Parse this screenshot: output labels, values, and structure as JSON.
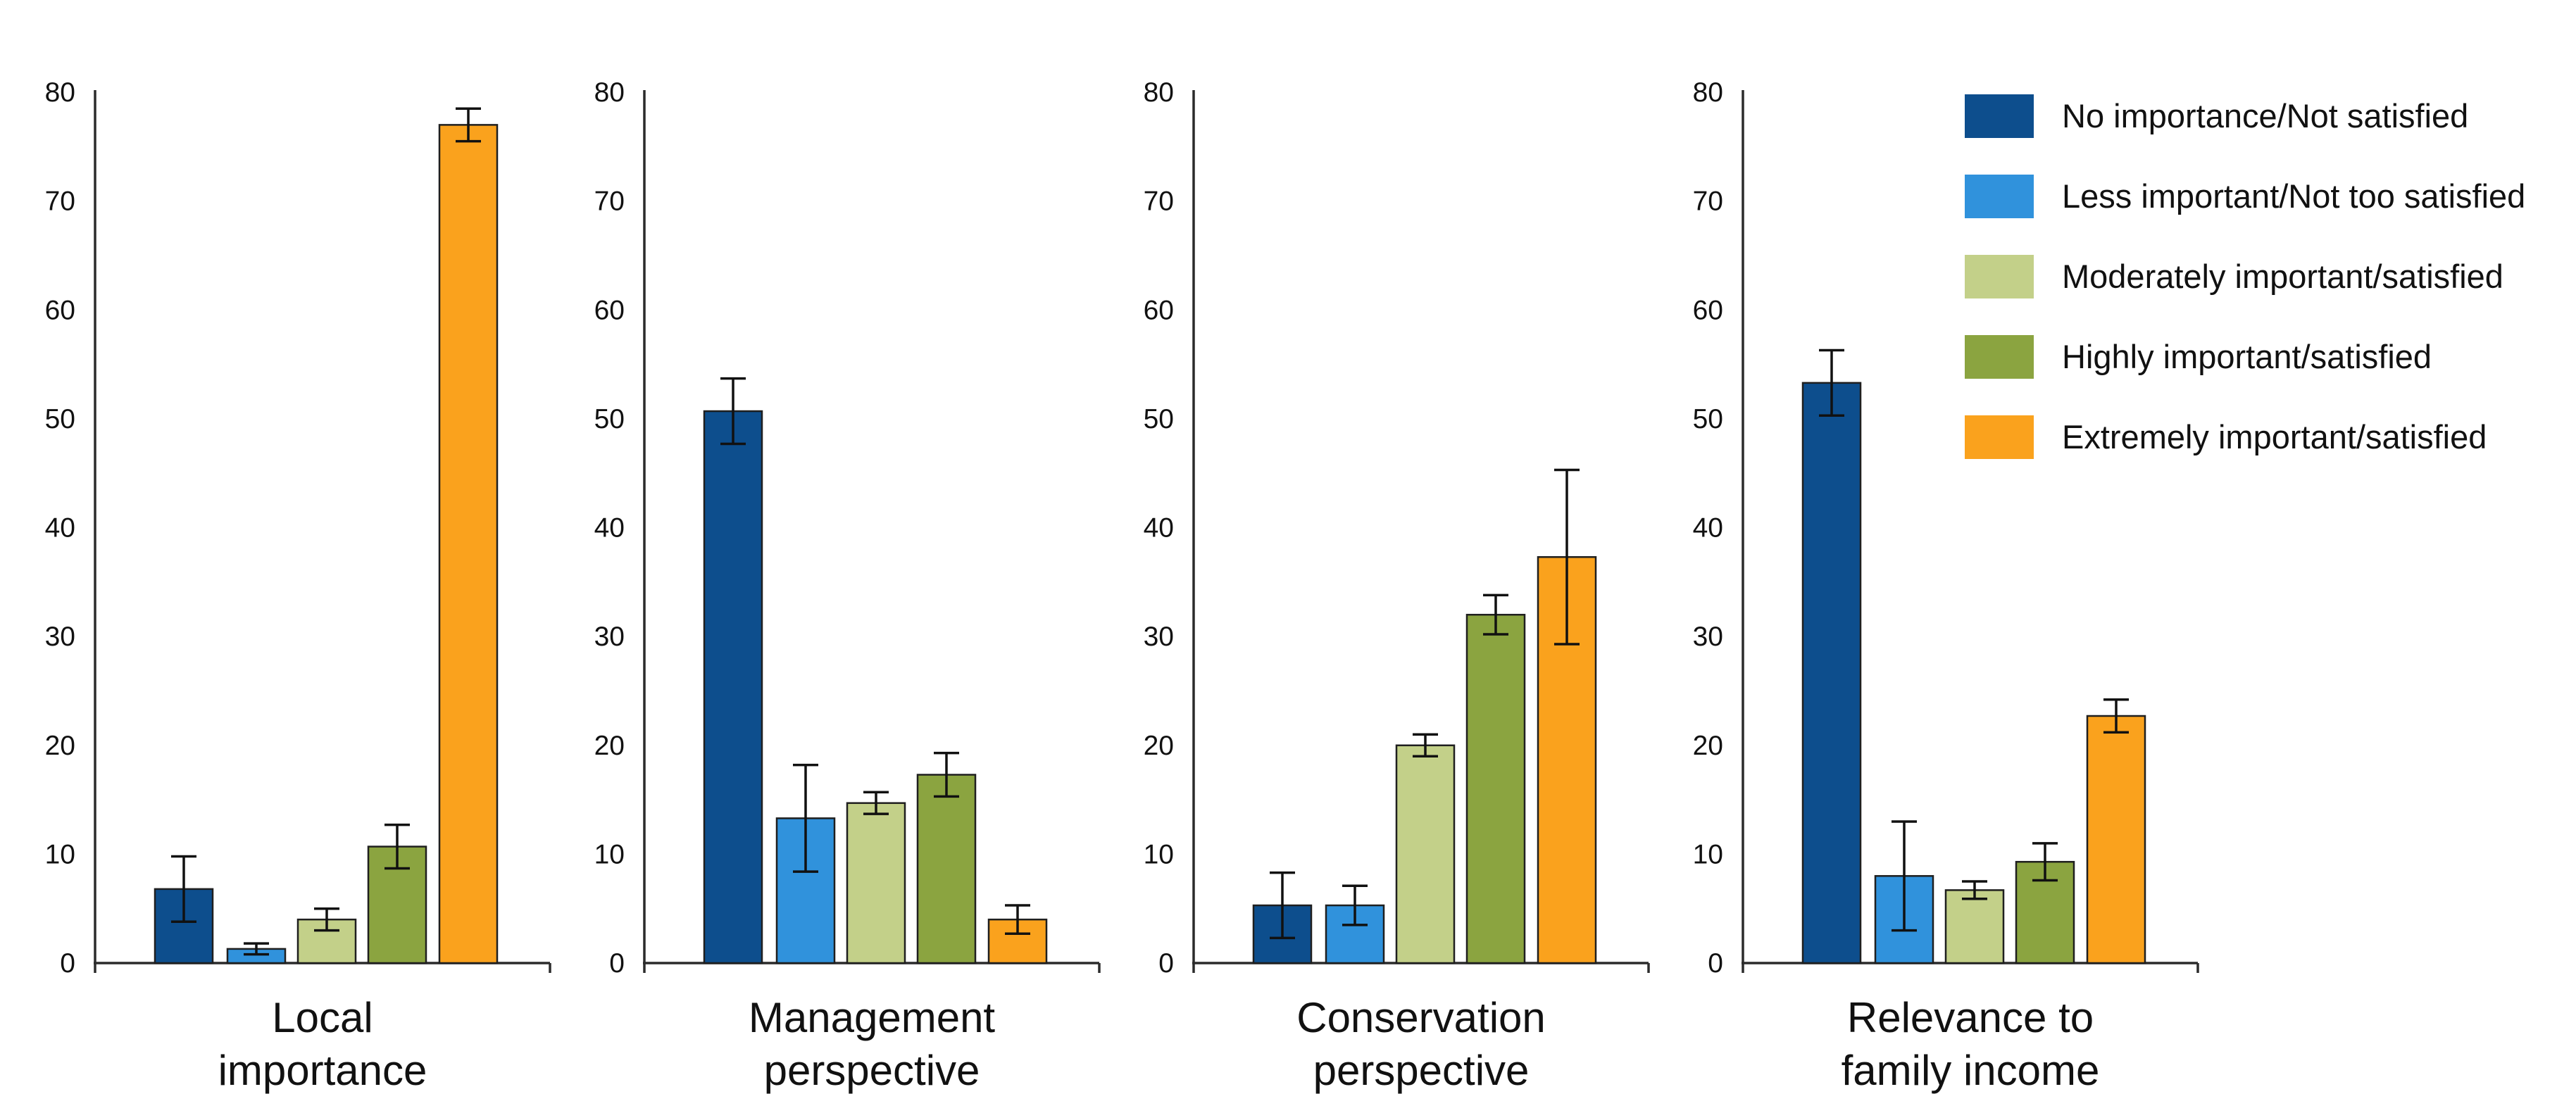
{
  "figure": {
    "background_color": "#ffffff",
    "text_color": "#111111",
    "axis_color": "#2b2b2b"
  },
  "chart_data": {
    "type": "bar",
    "title": "",
    "xlabel": "",
    "ylabel": "",
    "ylim": [
      0,
      80
    ],
    "ytick_step": 10,
    "yticks": [
      0,
      10,
      20,
      30,
      40,
      50,
      60,
      70,
      80
    ],
    "grid": false,
    "error_bars": true,
    "legend_position": "top-right",
    "categories": [
      "Local importance",
      "Management perspective",
      "Conservation perspective",
      "Relevance to family income"
    ],
    "category_label_lines": [
      [
        "Local",
        "importance"
      ],
      [
        "Management",
        "perspective"
      ],
      [
        "Conservation",
        "perspective"
      ],
      [
        "Relevance to",
        "family income"
      ]
    ],
    "series": [
      {
        "name": "No importance/Not satisfied",
        "color": "#0d4e8d",
        "values": [
          6.8,
          50.7,
          5.3,
          53.3
        ],
        "errors": [
          3.0,
          3.0,
          3.0,
          3.0
        ]
      },
      {
        "name": "Less important/Not too satisfied",
        "color": "#3092dc",
        "values": [
          1.3,
          13.3,
          5.3,
          8.0
        ],
        "errors": [
          0.5,
          4.9,
          1.8,
          5.0
        ]
      },
      {
        "name": "Moderately important/satisfied",
        "color": "#c3d089",
        "values": [
          4.0,
          14.7,
          20.0,
          6.7
        ],
        "errors": [
          1.0,
          1.0,
          1.0,
          0.8
        ]
      },
      {
        "name": "Highly important/satisfied",
        "color": "#8ba440",
        "values": [
          10.7,
          17.3,
          32.0,
          9.3
        ],
        "errors": [
          2.0,
          2.0,
          1.8,
          1.7
        ]
      },
      {
        "name": "Extremely important/satisfied",
        "color": "#faa21d",
        "values": [
          77.0,
          4.0,
          37.3,
          22.7
        ],
        "errors": [
          1.5,
          1.3,
          8.0,
          1.5
        ]
      }
    ]
  }
}
